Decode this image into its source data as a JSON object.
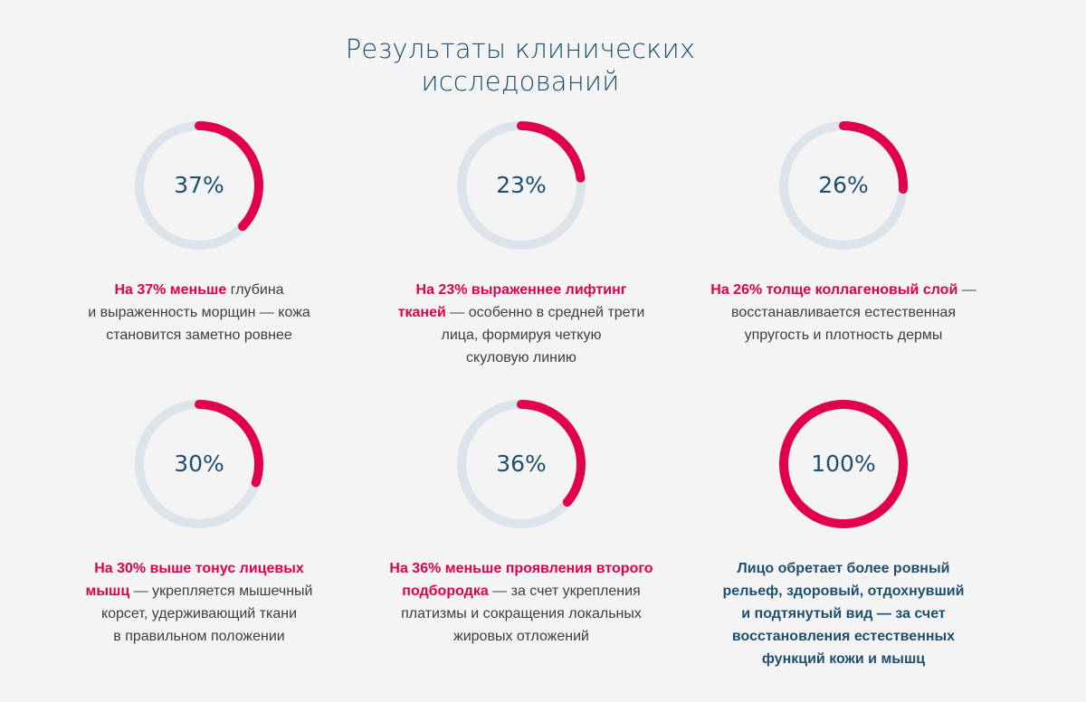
{
  "title": {
    "line1": "Результаты клинических",
    "line2": "исследований"
  },
  "colors": {
    "accent": "#e0004e",
    "track": "#dde3ea",
    "heading": "#1e4f6e"
  },
  "stats": [
    {
      "label": "37%",
      "fraction": 0.37,
      "highlight": "На 37% меньше",
      "l1_rest": " глубина",
      "l2": "и выраженность морщин — кожа",
      "l3": "становится заметно ровнее"
    },
    {
      "label": "23%",
      "fraction": 0.23,
      "highlight1": "На 23% выраженнее лифтинг",
      "highlight2": "тканей",
      "l2_rest": " — особенно в средней трети",
      "l3": "лица, формируя четкую",
      "l4": "скуловую линию"
    },
    {
      "label": "26%",
      "fraction": 0.26,
      "highlight": "На 26% толще коллагеновый слой",
      "l1_rest": " —",
      "l2": "восстанавливается естественная",
      "l3": "упругость и плотность дермы"
    },
    {
      "label": "30%",
      "fraction": 0.3,
      "highlight1": "На 30% выше тонус лицевых",
      "highlight2": "мышц",
      "l2_rest": " — укрепляется мышечный",
      "l3": "корсет, удерживающий ткани",
      "l4": "в правильном положении"
    },
    {
      "label": "36%",
      "fraction": 0.36,
      "highlight1": "На 36% меньше проявления второго",
      "highlight2": "подбородка",
      "l2_rest": " — за счет укрепления",
      "l3": "платизмы и сокращения локальных",
      "l4": "жировых отложений"
    },
    {
      "label": "100%",
      "fraction": 1.0,
      "l1": "Лицо обретает более ровный",
      "l2": "рельеф, здоровый, отдохнувший",
      "l3": "и подтянутый вид — за счет",
      "l4": "восстановления естественных",
      "l5": "функций кожи и мышц"
    }
  ]
}
